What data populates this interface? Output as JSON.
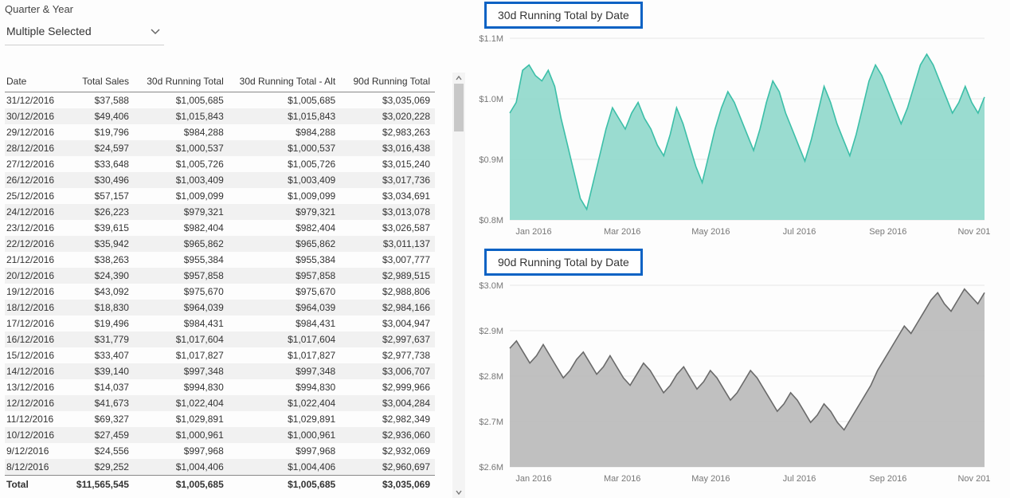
{
  "slicer": {
    "title": "Quarter & Year",
    "value": "Multiple Selected"
  },
  "table": {
    "columns": [
      "Date",
      "Total Sales",
      "30d Running Total",
      "30d Running Total - Alt",
      "90d Running Total"
    ],
    "rows": [
      [
        "31/12/2016",
        "$37,588",
        "$1,005,685",
        "$1,005,685",
        "$3,035,069"
      ],
      [
        "30/12/2016",
        "$49,406",
        "$1,015,843",
        "$1,015,843",
        "$3,020,228"
      ],
      [
        "29/12/2016",
        "$19,796",
        "$984,288",
        "$984,288",
        "$2,983,263"
      ],
      [
        "28/12/2016",
        "$24,597",
        "$1,000,537",
        "$1,000,537",
        "$3,016,438"
      ],
      [
        "27/12/2016",
        "$33,648",
        "$1,005,726",
        "$1,005,726",
        "$3,015,240"
      ],
      [
        "26/12/2016",
        "$30,496",
        "$1,003,409",
        "$1,003,409",
        "$3,017,736"
      ],
      [
        "25/12/2016",
        "$57,157",
        "$1,009,099",
        "$1,009,099",
        "$3,034,691"
      ],
      [
        "24/12/2016",
        "$26,223",
        "$979,321",
        "$979,321",
        "$3,013,078"
      ],
      [
        "23/12/2016",
        "$39,615",
        "$982,404",
        "$982,404",
        "$3,026,587"
      ],
      [
        "22/12/2016",
        "$35,942",
        "$965,862",
        "$965,862",
        "$3,011,137"
      ],
      [
        "21/12/2016",
        "$38,263",
        "$955,384",
        "$955,384",
        "$3,007,777"
      ],
      [
        "20/12/2016",
        "$24,390",
        "$957,858",
        "$957,858",
        "$2,989,515"
      ],
      [
        "19/12/2016",
        "$43,092",
        "$975,670",
        "$975,670",
        "$2,988,806"
      ],
      [
        "18/12/2016",
        "$18,830",
        "$964,039",
        "$964,039",
        "$2,984,166"
      ],
      [
        "17/12/2016",
        "$19,496",
        "$984,431",
        "$984,431",
        "$3,004,947"
      ],
      [
        "16/12/2016",
        "$31,779",
        "$1,017,604",
        "$1,017,604",
        "$2,997,637"
      ],
      [
        "15/12/2016",
        "$33,407",
        "$1,017,827",
        "$1,017,827",
        "$2,977,738"
      ],
      [
        "14/12/2016",
        "$39,140",
        "$997,348",
        "$997,348",
        "$3,006,707"
      ],
      [
        "13/12/2016",
        "$14,037",
        "$994,830",
        "$994,830",
        "$2,999,966"
      ],
      [
        "12/12/2016",
        "$41,673",
        "$1,022,404",
        "$1,022,404",
        "$3,004,284"
      ],
      [
        "11/12/2016",
        "$69,327",
        "$1,029,891",
        "$1,029,891",
        "$2,982,349"
      ],
      [
        "10/12/2016",
        "$27,459",
        "$1,000,961",
        "$1,000,961",
        "$2,936,060"
      ],
      [
        "9/12/2016",
        "$24,556",
        "$997,968",
        "$997,968",
        "$2,932,069"
      ],
      [
        "8/12/2016",
        "$29,252",
        "$1,004,406",
        "$1,004,406",
        "$2,960,697"
      ]
    ],
    "totals": [
      "Total",
      "$11,565,545",
      "$1,005,685",
      "$1,005,685",
      "$3,035,069"
    ]
  },
  "chart30": {
    "title": "30d Running Total by Date",
    "type": "area",
    "line_color": "#3cbfa8",
    "fill_color": "#8fd8cb",
    "background_color": "#ffffff",
    "grid_color": "#e6e6e6",
    "x_labels": [
      "Jan 2016",
      "Mar 2016",
      "May 2016",
      "Jul 2016",
      "Sep 2016",
      "Nov 2016"
    ],
    "y_labels": [
      "$0.8M",
      "$0.9M",
      "$1.0M",
      "$1.1M"
    ],
    "y_min": 0.78,
    "y_max": 1.12,
    "label_fontsize": 11,
    "title_fontsize": 14,
    "series": [
      0.98,
      1.0,
      1.06,
      1.07,
      1.05,
      1.04,
      1.06,
      1.03,
      0.97,
      0.92,
      0.87,
      0.82,
      0.8,
      0.85,
      0.9,
      0.95,
      0.99,
      0.97,
      0.95,
      0.98,
      1.0,
      0.97,
      0.95,
      0.92,
      0.9,
      0.94,
      0.99,
      0.96,
      0.92,
      0.88,
      0.85,
      0.9,
      0.95,
      0.99,
      1.02,
      1.0,
      0.97,
      0.94,
      0.91,
      0.95,
      1.0,
      1.04,
      1.02,
      0.98,
      0.95,
      0.92,
      0.89,
      0.93,
      0.98,
      1.03,
      1.0,
      0.96,
      0.93,
      0.9,
      0.94,
      0.99,
      1.04,
      1.07,
      1.05,
      1.02,
      0.99,
      0.96,
      0.99,
      1.03,
      1.07,
      1.09,
      1.07,
      1.04,
      1.01,
      0.98,
      1.0,
      1.03,
      1.0,
      0.98,
      1.01
    ]
  },
  "chart90": {
    "title": "90d Running Total by Date",
    "type": "area",
    "line_color": "#6a6a6a",
    "fill_color": "#b9b9b9",
    "background_color": "#ffffff",
    "grid_color": "#e6e6e6",
    "x_labels": [
      "Jan 2016",
      "Mar 2016",
      "May 2016",
      "Jul 2016",
      "Sep 2016",
      "Nov 2016"
    ],
    "y_labels": [
      "$2.6M",
      "$2.7M",
      "$2.8M",
      "$2.9M",
      "$3.0M"
    ],
    "y_min": 2.56,
    "y_max": 3.05,
    "label_fontsize": 11,
    "title_fontsize": 14,
    "series": [
      2.88,
      2.9,
      2.87,
      2.84,
      2.86,
      2.89,
      2.86,
      2.83,
      2.8,
      2.82,
      2.85,
      2.87,
      2.84,
      2.81,
      2.83,
      2.86,
      2.83,
      2.8,
      2.78,
      2.81,
      2.84,
      2.82,
      2.79,
      2.76,
      2.78,
      2.81,
      2.83,
      2.8,
      2.77,
      2.79,
      2.82,
      2.8,
      2.77,
      2.74,
      2.76,
      2.79,
      2.82,
      2.8,
      2.77,
      2.74,
      2.71,
      2.73,
      2.76,
      2.74,
      2.71,
      2.68,
      2.7,
      2.73,
      2.71,
      2.68,
      2.66,
      2.69,
      2.72,
      2.75,
      2.78,
      2.82,
      2.85,
      2.88,
      2.91,
      2.94,
      2.92,
      2.95,
      2.98,
      3.01,
      3.03,
      3.0,
      2.98,
      3.01,
      3.04,
      3.02,
      3.0,
      3.03
    ]
  },
  "colors": {
    "highlight_border": "#0b62c4",
    "red_accent": "#e2231a"
  }
}
